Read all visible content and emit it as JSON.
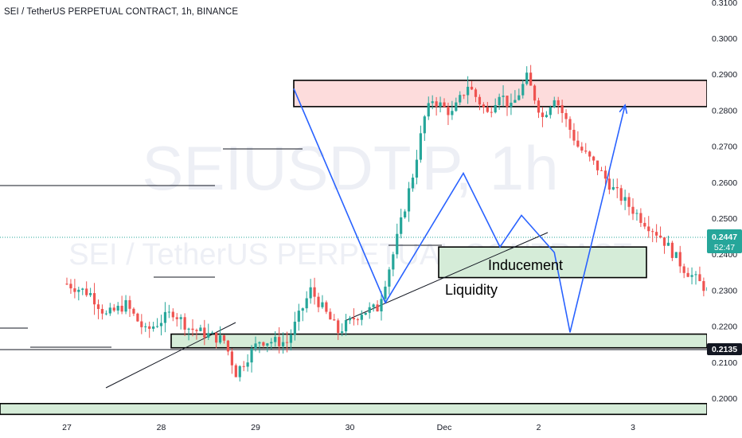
{
  "header": {
    "title": "SEI / TetherUS PERPETUAL CONTRACT, 1h, BINANCE"
  },
  "watermark": {
    "symbol": "SEIUSDT.P, 1h",
    "description": "SEI / TetherUS PERPETUAL CONTRACT"
  },
  "price_tag": {
    "price": "0.2447",
    "countdown": "52:47",
    "color": "#26a69a"
  },
  "line_tag": {
    "price": "0.2135",
    "color": "#131722"
  },
  "annotations": {
    "inducement": "Inducement",
    "liquidity": "Liquidity"
  },
  "colors": {
    "up": "#26a69a",
    "down": "#ef5350",
    "wave": "#2962ff",
    "supply_zone": "#fddcdc",
    "demand_zone": "#d5ecd8"
  },
  "chart_data": {
    "type": "candlestick",
    "symbol": "SEIUSDT.P",
    "interval": "1h",
    "exchange": "BINANCE",
    "y_axis": {
      "range": [
        0.195,
        0.31
      ],
      "ticks": [
        0.2,
        0.21,
        0.22,
        0.23,
        0.24,
        0.25,
        0.26,
        0.27,
        0.28,
        0.29,
        0.3,
        0.31
      ]
    },
    "x_axis": {
      "ticks": [
        "27",
        "28",
        "29",
        "30",
        "Dec",
        "2",
        "3"
      ]
    },
    "last_price": 0.2447,
    "zones": [
      {
        "type": "supply",
        "top": 0.2883,
        "bottom": 0.281
      },
      {
        "type": "demand",
        "label": "Inducement",
        "top": 0.242,
        "bottom": 0.2335
      },
      {
        "type": "demand",
        "top": 0.2178,
        "bottom": 0.214
      },
      {
        "type": "demand",
        "top": 0.1985,
        "bottom": 0.1955
      }
    ],
    "levels": [
      0.2135,
      0.2444
    ],
    "projection": [
      {
        "time": "Dec 1 22:00",
        "price": 0.2508
      },
      {
        "time": "Dec 2 04:00",
        "price": 0.2405
      },
      {
        "time": "Dec 2 08:00",
        "price": 0.2183
      },
      {
        "time": "Dec 2 22:00",
        "price": 0.2814
      }
    ]
  }
}
